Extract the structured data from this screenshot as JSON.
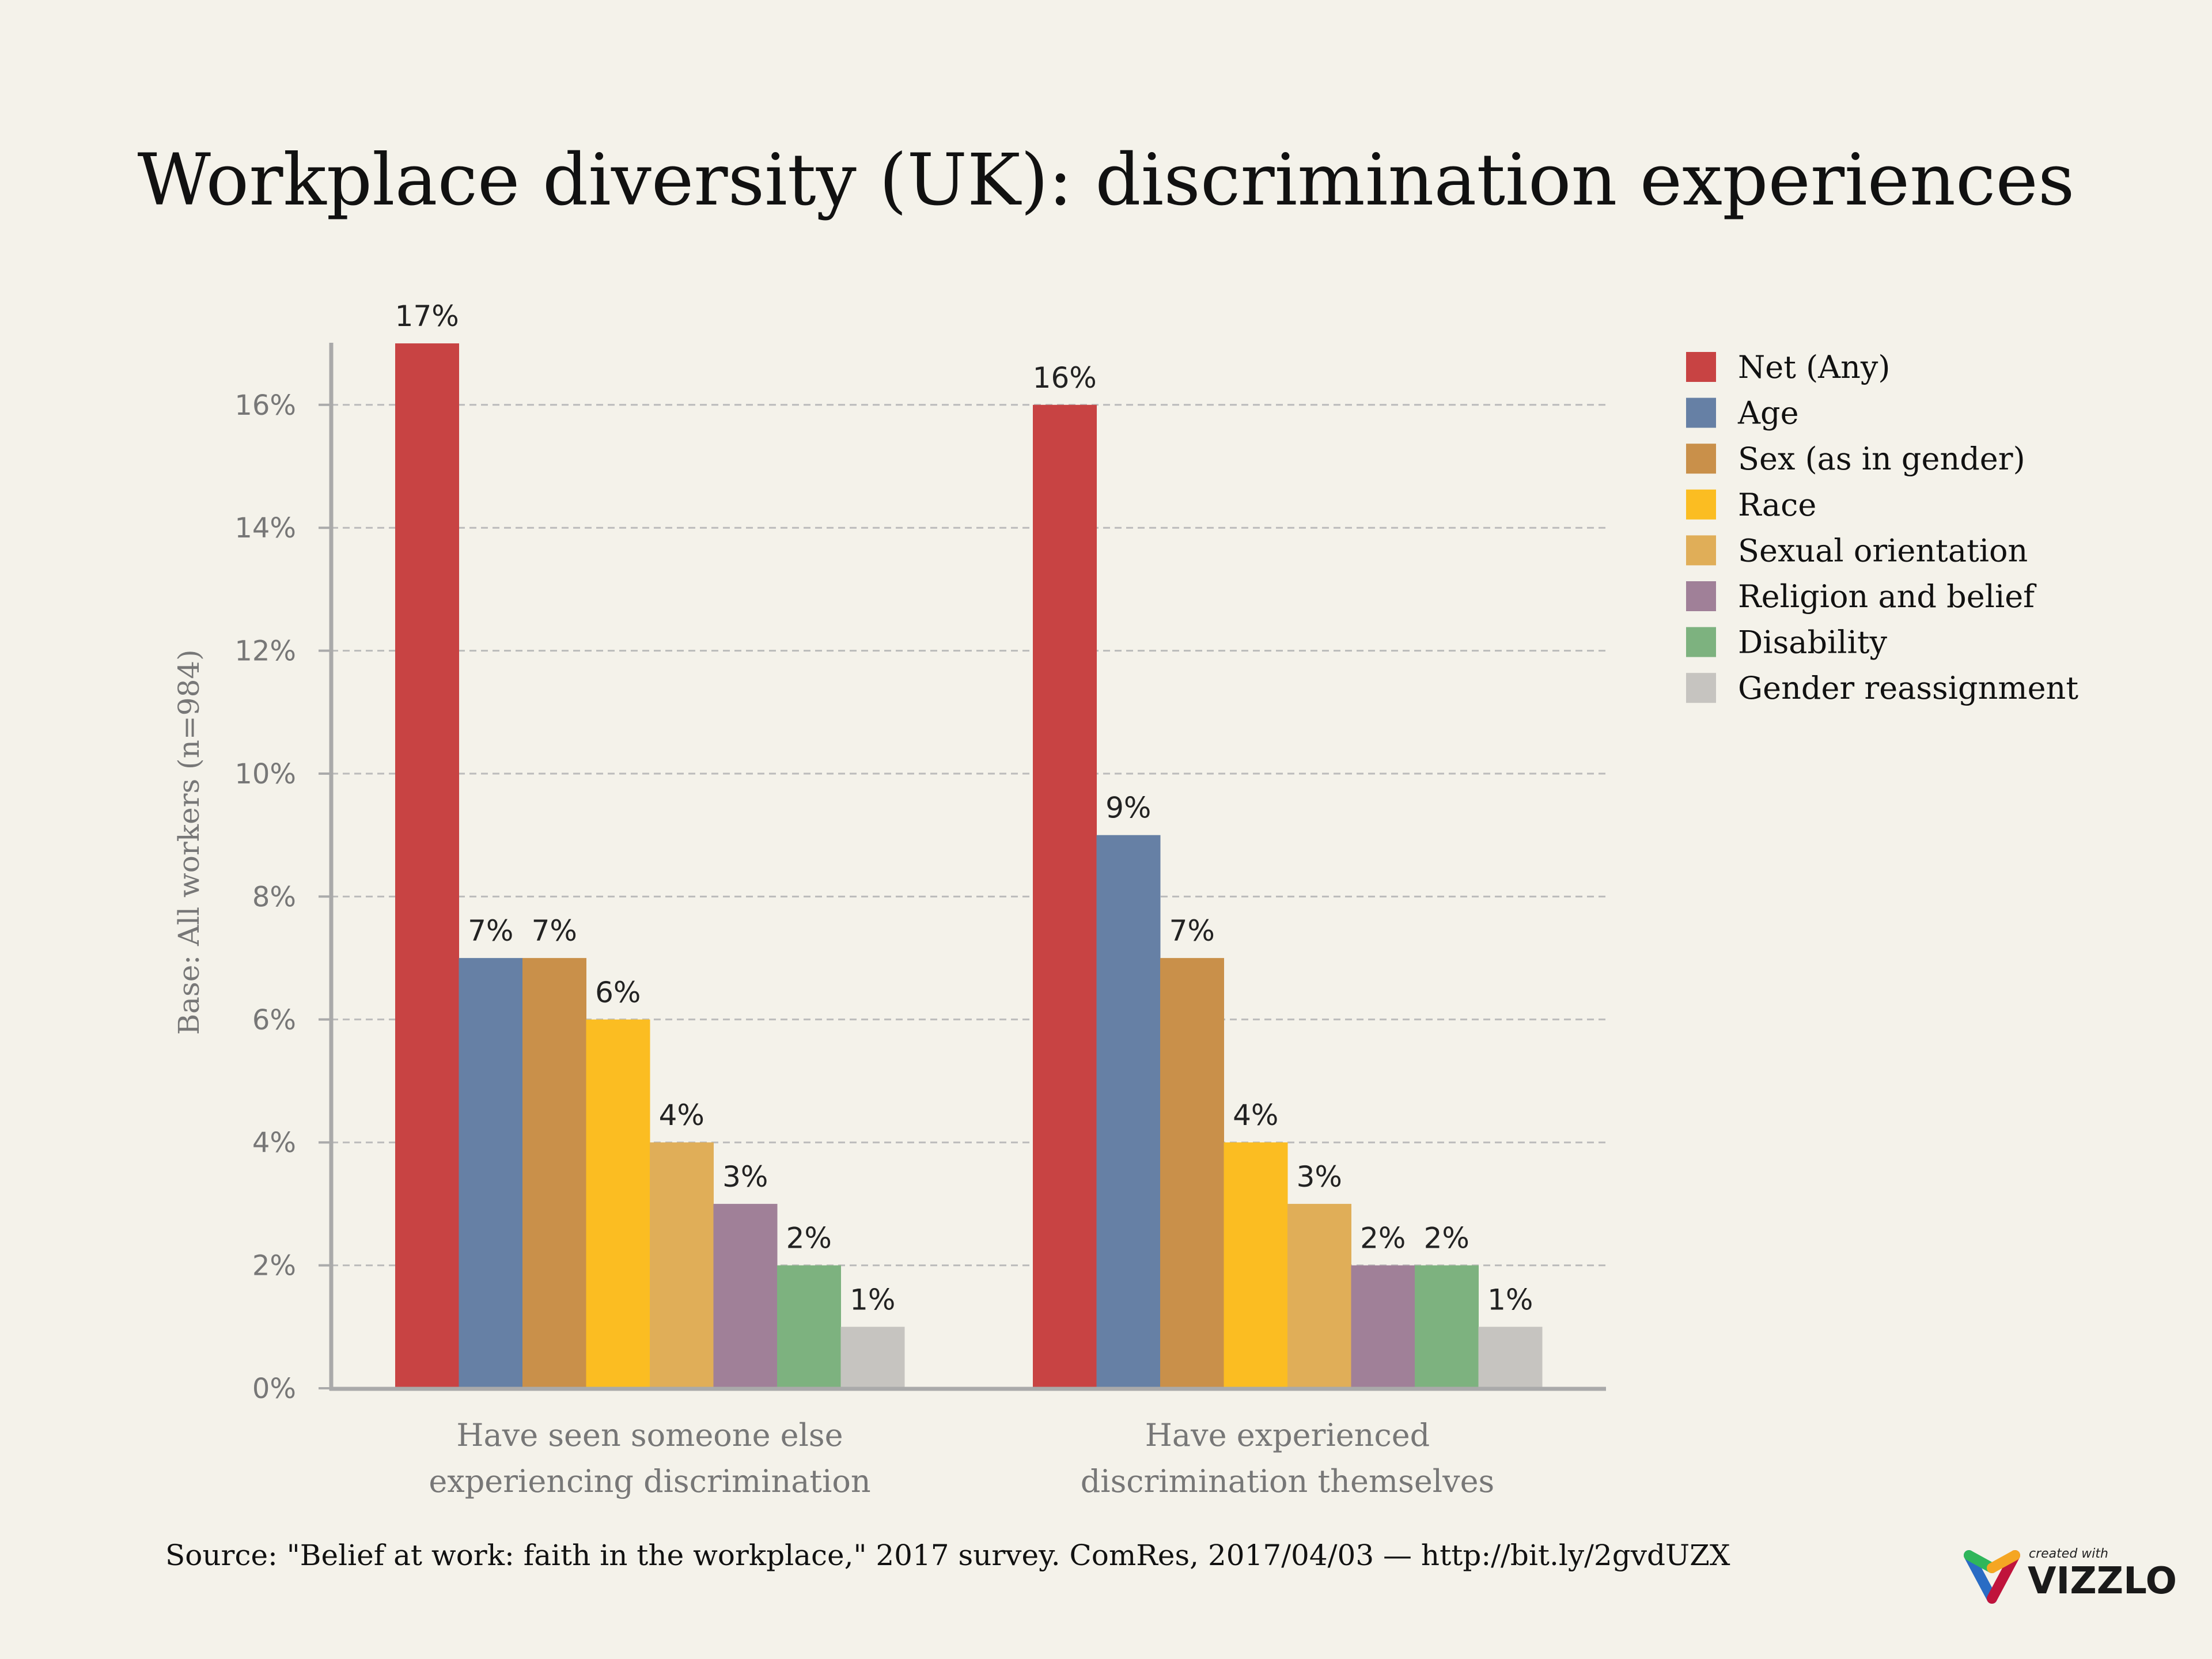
{
  "chart_data": {
    "type": "bar",
    "title": "Workplace diversity (UK): discrimination experiences",
    "ylabel": "Base: All workers (n=984)",
    "xlabel": "",
    "ylim": [
      0,
      17
    ],
    "yticks": [
      "0%",
      "2%",
      "4%",
      "6%",
      "8%",
      "10%",
      "12%",
      "14%",
      "16%"
    ],
    "grid": true,
    "legend_position": "right",
    "categories": [
      [
        "Have seen someone else",
        "experiencing discrimination"
      ],
      [
        "Have experienced",
        "discrimination themselves"
      ]
    ],
    "series": [
      {
        "name": "Net (Any)",
        "color": "#c84343",
        "values": [
          17,
          16
        ]
      },
      {
        "name": "Age",
        "color": "#6680a5",
        "values": [
          7,
          9
        ]
      },
      {
        "name": "Sex (as in gender)",
        "color": "#c9904a",
        "values": [
          7,
          7
        ]
      },
      {
        "name": "Race",
        "color": "#fbbd22",
        "values": [
          6,
          4
        ]
      },
      {
        "name": "Sexual orientation",
        "color": "#e0ae58",
        "values": [
          4,
          3
        ]
      },
      {
        "name": "Religion and belief",
        "color": "#a08098",
        "values": [
          3,
          2
        ]
      },
      {
        "name": "Disability",
        "color": "#7db27f",
        "values": [
          2,
          2
        ]
      },
      {
        "name": "Gender reassignment",
        "color": "#c6c4c0",
        "values": [
          1,
          1
        ]
      }
    ],
    "value_suffix": "%"
  },
  "source": "Source: \"Belief at work: faith in the workplace,\" 2017 survey. ComRes, 2017/04/03 — http://bit.ly/2gvdUZX",
  "logo": {
    "small": "created with",
    "brand": "VIZZLO"
  }
}
